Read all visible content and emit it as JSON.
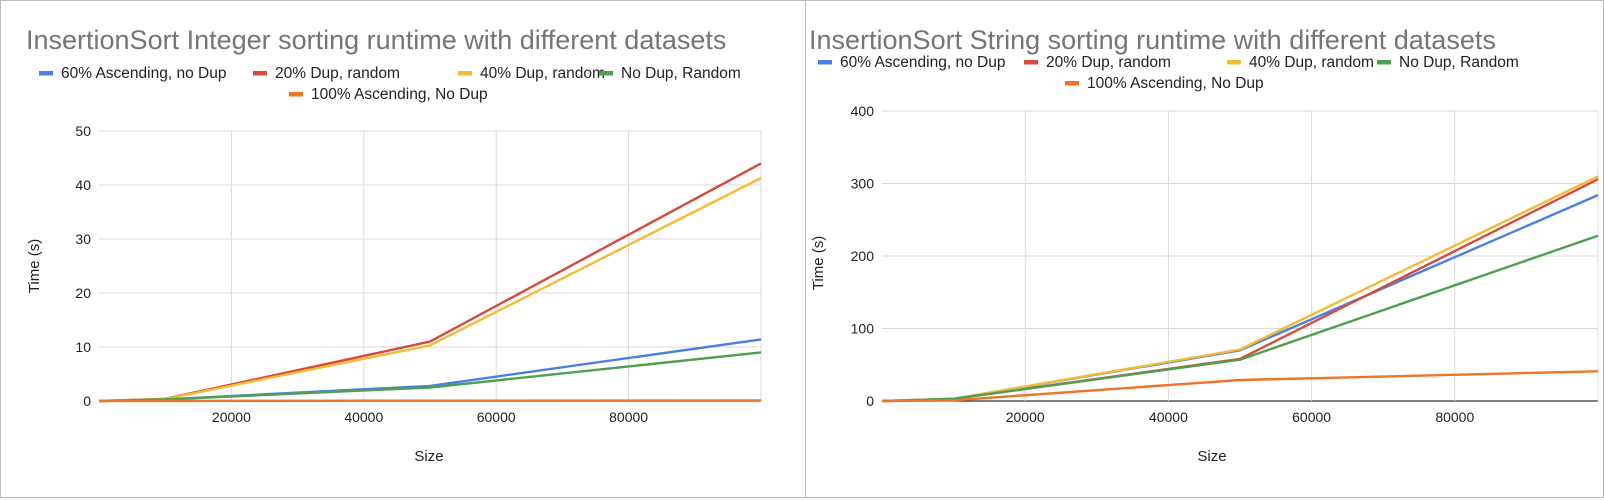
{
  "chart_data": [
    {
      "type": "line",
      "title": "InsertionSort Integer sorting runtime with different datasets",
      "xlabel": "Size",
      "ylabel": "Time (s)",
      "xlim": [
        0,
        100000
      ],
      "ylim": [
        0,
        50
      ],
      "x_ticks": [
        20000,
        40000,
        60000,
        80000
      ],
      "y_ticks": [
        0,
        10,
        20,
        30,
        40,
        50
      ],
      "legend_position": "top",
      "grid": true,
      "x": [
        0,
        10000,
        50000,
        100000
      ],
      "series": [
        {
          "name": "60% Ascending, no Dup",
          "color": "#4a7fe5",
          "values": [
            0,
            0.3,
            2.8,
            11.4
          ]
        },
        {
          "name": "20% Dup, random",
          "color": "#d8483b",
          "values": [
            0,
            0.4,
            11.0,
            44.0
          ]
        },
        {
          "name": "40% Dup, random",
          "color": "#f1bc37",
          "values": [
            0,
            0.35,
            10.3,
            41.3
          ]
        },
        {
          "name": "No Dup, Random",
          "color": "#4e9f52",
          "values": [
            0,
            0.3,
            2.5,
            9.0
          ]
        },
        {
          "name": "100% Ascending, No Dup",
          "color": "#ed7428",
          "values": [
            0,
            0.02,
            0.05,
            0.1
          ]
        }
      ]
    },
    {
      "type": "line",
      "title": "InsertionSort String sorting runtime with different datasets",
      "xlabel": "Size",
      "ylabel": "Time (s)",
      "xlim": [
        0,
        100000
      ],
      "ylim": [
        0,
        400
      ],
      "x_ticks": [
        20000,
        40000,
        60000,
        80000
      ],
      "y_ticks": [
        0,
        100,
        200,
        300,
        400
      ],
      "legend_position": "top",
      "grid": true,
      "x": [
        0,
        10000,
        50000,
        100000
      ],
      "series": [
        {
          "name": "60% Ascending, no Dup",
          "color": "#4a7fe5",
          "values": [
            0,
            3,
            70,
            284
          ]
        },
        {
          "name": "20% Dup, random",
          "color": "#d8483b",
          "values": [
            0,
            3,
            58,
            306
          ]
        },
        {
          "name": "40% Dup, random",
          "color": "#f1bc37",
          "values": [
            0,
            3,
            71,
            310
          ]
        },
        {
          "name": "No Dup, Random",
          "color": "#4e9f52",
          "values": [
            0,
            3,
            57,
            228
          ]
        },
        {
          "name": "100% Ascending, No Dup",
          "color": "#ed7428",
          "values": [
            0,
            1,
            29,
            41
          ]
        }
      ]
    }
  ]
}
